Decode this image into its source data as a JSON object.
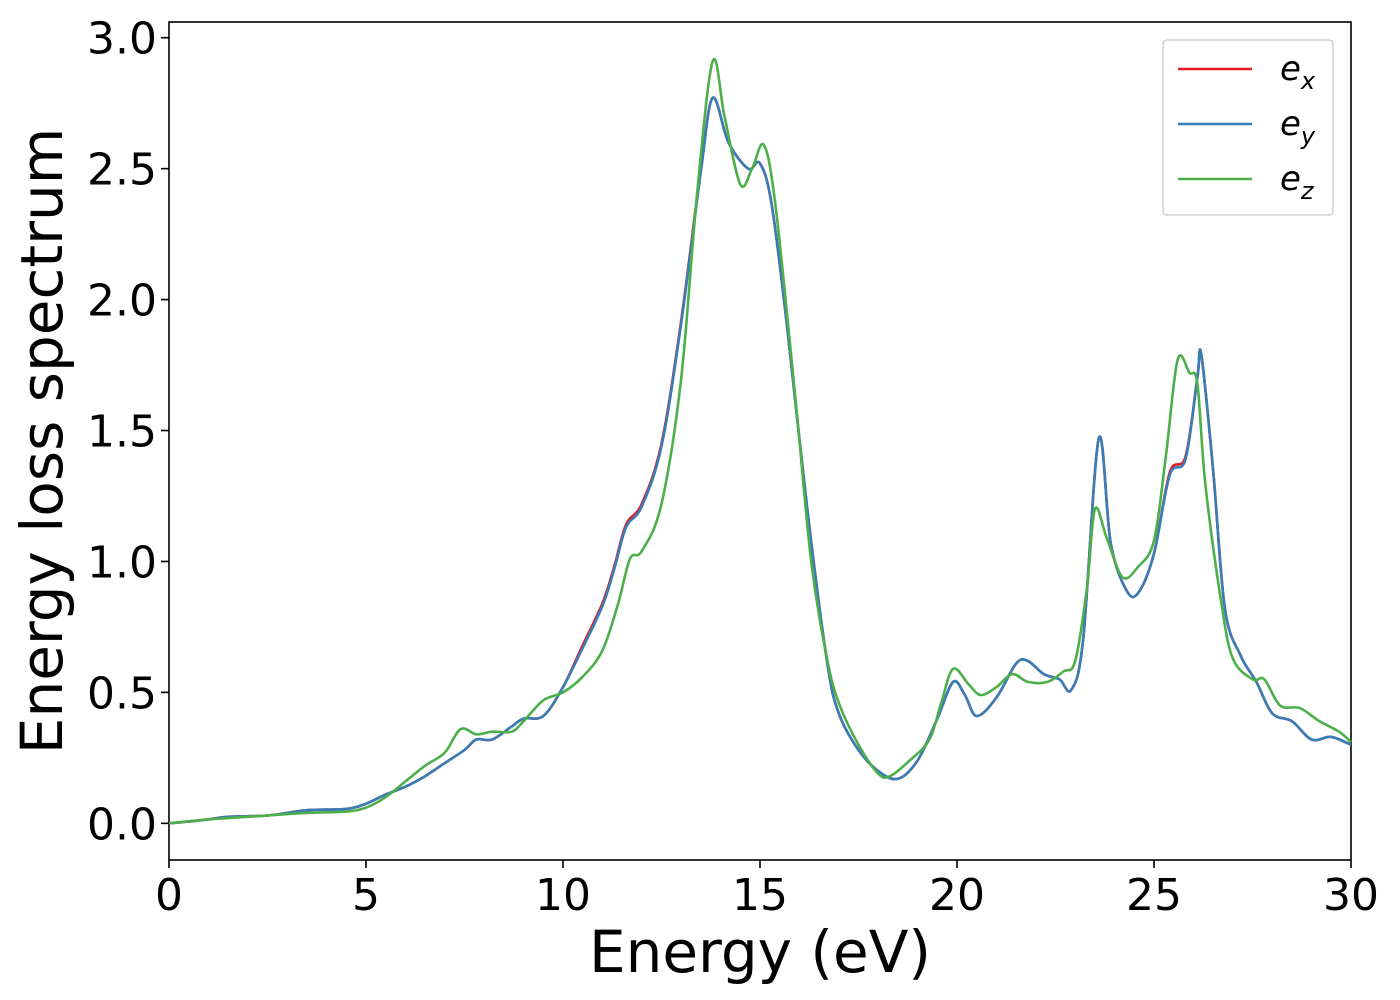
{
  "chart_data": {
    "type": "line",
    "title": "",
    "xlabel": "Energy (eV)",
    "ylabel": "Energy loss spectrum",
    "xlim": [
      0,
      30
    ],
    "ylim": [
      -0.14,
      3.06
    ],
    "xticks": [
      0,
      5,
      10,
      15,
      20,
      25,
      30
    ],
    "xtick_labels": [
      "0",
      "5",
      "10",
      "15",
      "20",
      "25",
      "30"
    ],
    "yticks": [
      0.0,
      0.5,
      1.0,
      1.5,
      2.0,
      2.5,
      3.0
    ],
    "ytick_labels": [
      "0.0",
      "0.5",
      "1.0",
      "1.5",
      "2.0",
      "2.5",
      "3.0"
    ],
    "grid": false,
    "legend_position": "top-right",
    "series": [
      {
        "name": "e_x",
        "label_base": "e",
        "label_sub": "x",
        "color": "#e41a1c",
        "points": [
          [
            0,
            0.0
          ],
          [
            1,
            0.015
          ],
          [
            1.5,
            0.025
          ],
          [
            2.5,
            0.03
          ],
          [
            3.5,
            0.05
          ],
          [
            4.5,
            0.055
          ],
          [
            5,
            0.075
          ],
          [
            5.5,
            0.11
          ],
          [
            6,
            0.14
          ],
          [
            6.5,
            0.18
          ],
          [
            7,
            0.23
          ],
          [
            7.5,
            0.28
          ],
          [
            7.8,
            0.32
          ],
          [
            8.2,
            0.32
          ],
          [
            8.7,
            0.37
          ],
          [
            9,
            0.4
          ],
          [
            9.5,
            0.41
          ],
          [
            10,
            0.52
          ],
          [
            10.5,
            0.68
          ],
          [
            11,
            0.84
          ],
          [
            11.3,
            0.98
          ],
          [
            11.6,
            1.14
          ],
          [
            12,
            1.22
          ],
          [
            12.5,
            1.45
          ],
          [
            13,
            1.92
          ],
          [
            13.5,
            2.5
          ],
          [
            13.8,
            2.77
          ],
          [
            14.2,
            2.6
          ],
          [
            14.7,
            2.5
          ],
          [
            15,
            2.52
          ],
          [
            15.3,
            2.36
          ],
          [
            15.7,
            1.88
          ],
          [
            16.2,
            1.2
          ],
          [
            16.7,
            0.62
          ],
          [
            17,
            0.42
          ],
          [
            17.5,
            0.28
          ],
          [
            18,
            0.2
          ],
          [
            18.5,
            0.17
          ],
          [
            19,
            0.24
          ],
          [
            19.5,
            0.4
          ],
          [
            19.9,
            0.54
          ],
          [
            20.2,
            0.49
          ],
          [
            20.5,
            0.41
          ],
          [
            21,
            0.48
          ],
          [
            21.5,
            0.61
          ],
          [
            21.8,
            0.62
          ],
          [
            22.2,
            0.57
          ],
          [
            22.6,
            0.55
          ],
          [
            22.9,
            0.51
          ],
          [
            23.2,
            0.7
          ],
          [
            23.6,
            1.47
          ],
          [
            23.9,
            1.07
          ],
          [
            24.3,
            0.89
          ],
          [
            24.6,
            0.88
          ],
          [
            25,
            1.03
          ],
          [
            25.4,
            1.34
          ],
          [
            25.8,
            1.4
          ],
          [
            26.1,
            1.7
          ],
          [
            26.2,
            1.79
          ],
          [
            26.5,
            1.35
          ],
          [
            26.8,
            0.82
          ],
          [
            27.2,
            0.64
          ],
          [
            27.6,
            0.54
          ],
          [
            28,
            0.42
          ],
          [
            28.5,
            0.39
          ],
          [
            29,
            0.32
          ],
          [
            29.5,
            0.33
          ],
          [
            30,
            0.3
          ]
        ]
      },
      {
        "name": "e_y",
        "label_base": "e",
        "label_sub": "y",
        "color": "#377eb8",
        "points": [
          [
            0,
            0.0
          ],
          [
            1,
            0.015
          ],
          [
            1.5,
            0.025
          ],
          [
            2.5,
            0.03
          ],
          [
            3.5,
            0.05
          ],
          [
            4.5,
            0.055
          ],
          [
            5,
            0.075
          ],
          [
            5.5,
            0.11
          ],
          [
            6,
            0.14
          ],
          [
            6.5,
            0.18
          ],
          [
            7,
            0.23
          ],
          [
            7.5,
            0.28
          ],
          [
            7.8,
            0.32
          ],
          [
            8.2,
            0.32
          ],
          [
            8.7,
            0.37
          ],
          [
            9,
            0.4
          ],
          [
            9.5,
            0.41
          ],
          [
            10,
            0.52
          ],
          [
            10.5,
            0.67
          ],
          [
            11,
            0.83
          ],
          [
            11.3,
            0.97
          ],
          [
            11.6,
            1.13
          ],
          [
            12,
            1.21
          ],
          [
            12.5,
            1.44
          ],
          [
            13,
            1.91
          ],
          [
            13.5,
            2.49
          ],
          [
            13.8,
            2.77
          ],
          [
            14.2,
            2.6
          ],
          [
            14.7,
            2.5
          ],
          [
            15,
            2.52
          ],
          [
            15.3,
            2.36
          ],
          [
            15.7,
            1.88
          ],
          [
            16.2,
            1.2
          ],
          [
            16.7,
            0.62
          ],
          [
            17,
            0.42
          ],
          [
            17.5,
            0.28
          ],
          [
            18,
            0.2
          ],
          [
            18.5,
            0.17
          ],
          [
            19,
            0.24
          ],
          [
            19.5,
            0.4
          ],
          [
            19.9,
            0.54
          ],
          [
            20.2,
            0.49
          ],
          [
            20.5,
            0.41
          ],
          [
            21,
            0.48
          ],
          [
            21.5,
            0.61
          ],
          [
            21.8,
            0.62
          ],
          [
            22.2,
            0.57
          ],
          [
            22.6,
            0.55
          ],
          [
            22.9,
            0.51
          ],
          [
            23.2,
            0.7
          ],
          [
            23.6,
            1.47
          ],
          [
            23.9,
            1.07
          ],
          [
            24.3,
            0.89
          ],
          [
            24.6,
            0.88
          ],
          [
            25,
            1.03
          ],
          [
            25.4,
            1.33
          ],
          [
            25.8,
            1.39
          ],
          [
            26.1,
            1.7
          ],
          [
            26.2,
            1.79
          ],
          [
            26.5,
            1.35
          ],
          [
            26.8,
            0.82
          ],
          [
            27.2,
            0.64
          ],
          [
            27.6,
            0.54
          ],
          [
            28,
            0.42
          ],
          [
            28.5,
            0.39
          ],
          [
            29,
            0.32
          ],
          [
            29.5,
            0.33
          ],
          [
            30,
            0.3
          ]
        ]
      },
      {
        "name": "e_z",
        "label_base": "e",
        "label_sub": "z",
        "color": "#4daf4a",
        "points": [
          [
            0,
            0.0
          ],
          [
            1,
            0.015
          ],
          [
            1.5,
            0.02
          ],
          [
            2.5,
            0.03
          ],
          [
            3.5,
            0.04
          ],
          [
            4.5,
            0.045
          ],
          [
            5,
            0.06
          ],
          [
            5.5,
            0.1
          ],
          [
            6,
            0.16
          ],
          [
            6.5,
            0.22
          ],
          [
            7,
            0.27
          ],
          [
            7.4,
            0.36
          ],
          [
            7.8,
            0.34
          ],
          [
            8.2,
            0.35
          ],
          [
            8.7,
            0.35
          ],
          [
            9,
            0.39
          ],
          [
            9.5,
            0.47
          ],
          [
            10,
            0.5
          ],
          [
            10.5,
            0.56
          ],
          [
            11,
            0.66
          ],
          [
            11.4,
            0.84
          ],
          [
            11.7,
            1.01
          ],
          [
            12,
            1.04
          ],
          [
            12.5,
            1.22
          ],
          [
            13,
            1.7
          ],
          [
            13.4,
            2.4
          ],
          [
            13.8,
            2.91
          ],
          [
            14.1,
            2.7
          ],
          [
            14.5,
            2.44
          ],
          [
            14.8,
            2.5
          ],
          [
            15.1,
            2.59
          ],
          [
            15.4,
            2.35
          ],
          [
            15.9,
            1.62
          ],
          [
            16.3,
            1.0
          ],
          [
            16.7,
            0.63
          ],
          [
            17,
            0.46
          ],
          [
            17.5,
            0.3
          ],
          [
            18,
            0.19
          ],
          [
            18.3,
            0.18
          ],
          [
            18.8,
            0.24
          ],
          [
            19.3,
            0.32
          ],
          [
            19.6,
            0.46
          ],
          [
            19.9,
            0.59
          ],
          [
            20.3,
            0.53
          ],
          [
            20.6,
            0.49
          ],
          [
            21,
            0.52
          ],
          [
            21.4,
            0.57
          ],
          [
            21.8,
            0.54
          ],
          [
            22.3,
            0.54
          ],
          [
            22.7,
            0.58
          ],
          [
            23,
            0.62
          ],
          [
            23.3,
            0.9
          ],
          [
            23.5,
            1.2
          ],
          [
            23.8,
            1.09
          ],
          [
            24.2,
            0.94
          ],
          [
            24.6,
            0.98
          ],
          [
            25,
            1.08
          ],
          [
            25.3,
            1.4
          ],
          [
            25.6,
            1.77
          ],
          [
            25.9,
            1.72
          ],
          [
            26.1,
            1.68
          ],
          [
            26.3,
            1.3
          ],
          [
            26.7,
            0.85
          ],
          [
            27,
            0.63
          ],
          [
            27.5,
            0.55
          ],
          [
            27.8,
            0.55
          ],
          [
            28.2,
            0.45
          ],
          [
            28.7,
            0.44
          ],
          [
            29.2,
            0.39
          ],
          [
            29.7,
            0.35
          ],
          [
            30,
            0.31
          ]
        ]
      }
    ]
  }
}
